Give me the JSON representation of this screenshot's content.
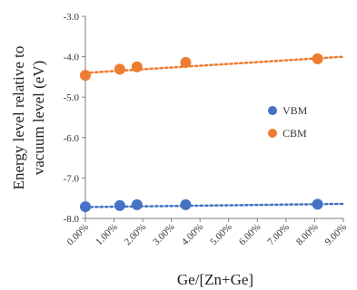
{
  "chart_data": {
    "type": "scatter",
    "title": "",
    "xlabel": "Ge/[Zn+Ge]",
    "ylabel_lines": [
      "Energy level relative to",
      "vacuum level (eV)"
    ],
    "xlim": [
      0,
      9
    ],
    "ylim": [
      -8,
      -3
    ],
    "x_ticks": [
      "0.00%",
      "1.00%",
      "2.00%",
      "3.00%",
      "4.00%",
      "5.00%",
      "6.00%",
      "7.00%",
      "8.00%",
      "9.00%"
    ],
    "y_ticks": [
      "-3.0",
      "-4.0",
      "-5.0",
      "-6.0",
      "-7.0",
      "-8.0"
    ],
    "x_unit": "%",
    "series": [
      {
        "name": "VBM",
        "color": "#4472C4",
        "x": [
          0.0,
          1.2,
          1.8,
          3.5,
          8.1
        ],
        "y": [
          -7.71,
          -7.68,
          -7.66,
          -7.66,
          -7.65
        ],
        "trendline": {
          "style": "dotted",
          "y_at_xmin": -7.72,
          "y_at_xmax": -7.64
        }
      },
      {
        "name": "CBM",
        "color": "#ED7D31",
        "x": [
          0.0,
          1.2,
          1.8,
          3.5,
          8.1
        ],
        "y": [
          -4.46,
          -4.31,
          -4.25,
          -4.14,
          -4.05
        ],
        "trendline": {
          "style": "dotted",
          "y_at_xmin": -4.4,
          "y_at_xmax": -4.0
        }
      }
    ],
    "legend_position": "right",
    "grid": false
  }
}
